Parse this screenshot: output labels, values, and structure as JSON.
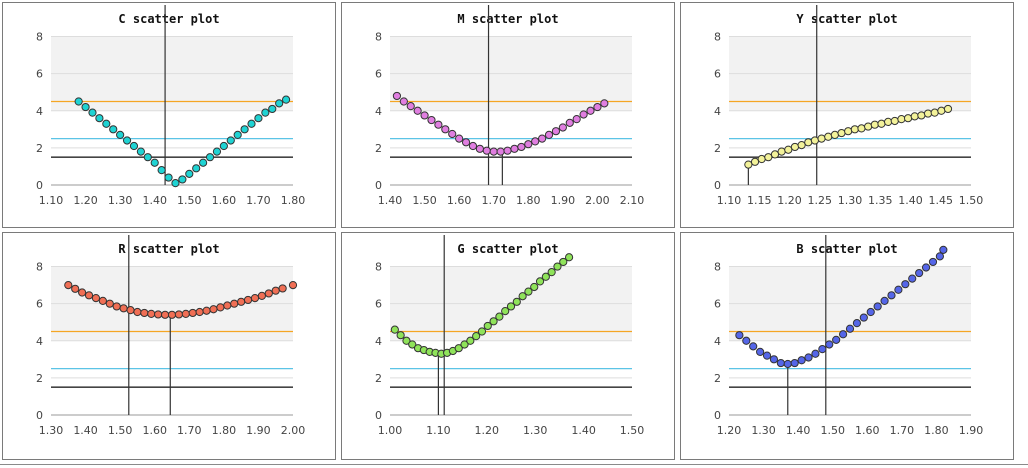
{
  "colors": {
    "band": "#f2f2f2",
    "grid": "#dddddd",
    "axis": "#9a9a9a",
    "orange": "#f5a623",
    "cyan": "#5bc4e6",
    "dark": "#444444",
    "marker": "#333333",
    "point_stroke": "#333333"
  },
  "chart_data": [
    {
      "type": "scatter",
      "title": "C scatter plot",
      "xlim": [
        1.1,
        1.8
      ],
      "xticks": [
        "1.10",
        "1.20",
        "1.30",
        "1.40",
        "1.50",
        "1.60",
        "1.70",
        "1.80"
      ],
      "ylim": [
        0,
        8
      ],
      "yticks": [
        "0",
        "2",
        "4",
        "6",
        "8"
      ],
      "hlines": [
        4.5,
        2.5,
        1.5
      ],
      "vlines": [
        {
          "x": 1.43,
          "y_from": 0,
          "y_to": 9.0
        }
      ],
      "color": "#1fd3d3",
      "x": [
        1.18,
        1.2,
        1.22,
        1.24,
        1.26,
        1.28,
        1.3,
        1.32,
        1.34,
        1.36,
        1.38,
        1.4,
        1.42,
        1.44,
        1.46,
        1.48,
        1.5,
        1.52,
        1.54,
        1.56,
        1.58,
        1.6,
        1.62,
        1.64,
        1.66,
        1.68,
        1.7,
        1.72,
        1.74,
        1.76,
        1.78
      ],
      "y": [
        4.5,
        4.2,
        3.9,
        3.6,
        3.3,
        3.0,
        2.7,
        2.4,
        2.1,
        1.8,
        1.5,
        1.2,
        0.8,
        0.4,
        0.1,
        0.3,
        0.6,
        0.9,
        1.2,
        1.5,
        1.8,
        2.1,
        2.4,
        2.7,
        3.0,
        3.3,
        3.6,
        3.9,
        4.1,
        4.4,
        4.6
      ]
    },
    {
      "type": "scatter",
      "title": "M scatter plot",
      "xlim": [
        1.4,
        2.1
      ],
      "xticks": [
        "1.40",
        "1.50",
        "1.60",
        "1.70",
        "1.80",
        "1.90",
        "2.00",
        "2.10"
      ],
      "ylim": [
        0,
        8
      ],
      "yticks": [
        "0",
        "2",
        "4",
        "6",
        "8"
      ],
      "hlines": [
        4.5,
        2.5,
        1.5
      ],
      "vlines": [
        {
          "x": 1.685,
          "y_from": 0,
          "y_to": 9.0
        },
        {
          "x": 1.725,
          "y_from": 0,
          "y_to": 1.8
        }
      ],
      "color": "#e07ee0",
      "x": [
        1.42,
        1.44,
        1.46,
        1.48,
        1.5,
        1.52,
        1.54,
        1.56,
        1.58,
        1.6,
        1.62,
        1.64,
        1.66,
        1.68,
        1.7,
        1.72,
        1.74,
        1.76,
        1.78,
        1.8,
        1.82,
        1.84,
        1.86,
        1.88,
        1.9,
        1.92,
        1.94,
        1.96,
        1.98,
        2.0,
        2.02
      ],
      "y": [
        4.8,
        4.5,
        4.25,
        4.0,
        3.75,
        3.5,
        3.25,
        3.0,
        2.75,
        2.5,
        2.3,
        2.1,
        1.95,
        1.85,
        1.8,
        1.8,
        1.85,
        1.95,
        2.05,
        2.2,
        2.35,
        2.5,
        2.7,
        2.9,
        3.1,
        3.35,
        3.55,
        3.8,
        4.0,
        4.2,
        4.4
      ]
    },
    {
      "type": "scatter",
      "title": "Y scatter plot",
      "xlim": [
        1.1,
        1.5
      ],
      "xticks": [
        "1.10",
        "1.15",
        "1.20",
        "1.25",
        "1.30",
        "1.35",
        "1.40",
        "1.45",
        "1.50"
      ],
      "ylim": [
        0,
        8
      ],
      "yticks": [
        "0",
        "2",
        "4",
        "6",
        "8"
      ],
      "hlines": [
        4.5,
        2.5,
        1.5
      ],
      "vlines": [
        {
          "x": 1.245,
          "y_from": 0,
          "y_to": 9.0
        },
        {
          "x": 1.132,
          "y_from": 0,
          "y_to": 1.1
        }
      ],
      "color": "#f3f29a",
      "x": [
        1.132,
        1.143,
        1.154,
        1.165,
        1.176,
        1.187,
        1.198,
        1.209,
        1.22,
        1.231,
        1.242,
        1.253,
        1.264,
        1.275,
        1.286,
        1.297,
        1.308,
        1.319,
        1.33,
        1.341,
        1.352,
        1.363,
        1.374,
        1.385,
        1.396,
        1.407,
        1.418,
        1.429,
        1.44,
        1.451,
        1.462
      ],
      "y": [
        1.1,
        1.25,
        1.4,
        1.5,
        1.65,
        1.8,
        1.9,
        2.05,
        2.15,
        2.3,
        2.4,
        2.5,
        2.6,
        2.7,
        2.8,
        2.9,
        3.0,
        3.05,
        3.15,
        3.25,
        3.3,
        3.4,
        3.45,
        3.55,
        3.6,
        3.7,
        3.75,
        3.85,
        3.9,
        4.0,
        4.1
      ]
    },
    {
      "type": "scatter",
      "title": "R scatter plot",
      "xlim": [
        1.3,
        2.0
      ],
      "xticks": [
        "1.30",
        "1.40",
        "1.50",
        "1.60",
        "1.70",
        "1.80",
        "1.90",
        "2.00"
      ],
      "ylim": [
        0,
        8
      ],
      "yticks": [
        "0",
        "2",
        "4",
        "6",
        "8"
      ],
      "hlines": [
        4.5,
        2.5,
        1.5
      ],
      "vlines": [
        {
          "x": 1.525,
          "y_from": 0,
          "y_to": 9.0
        },
        {
          "x": 1.645,
          "y_from": 0,
          "y_to": 5.35
        }
      ],
      "color": "#f06f55",
      "x": [
        1.35,
        1.37,
        1.39,
        1.41,
        1.43,
        1.45,
        1.47,
        1.49,
        1.51,
        1.53,
        1.55,
        1.57,
        1.59,
        1.61,
        1.63,
        1.65,
        1.67,
        1.69,
        1.71,
        1.73,
        1.75,
        1.77,
        1.79,
        1.81,
        1.83,
        1.85,
        1.87,
        1.89,
        1.91,
        1.93,
        1.95,
        1.97,
        2.0
      ],
      "y": [
        7.0,
        6.8,
        6.6,
        6.45,
        6.3,
        6.15,
        6.0,
        5.85,
        5.75,
        5.65,
        5.55,
        5.5,
        5.45,
        5.42,
        5.4,
        5.4,
        5.42,
        5.45,
        5.5,
        5.55,
        5.62,
        5.7,
        5.8,
        5.9,
        6.0,
        6.1,
        6.2,
        6.3,
        6.42,
        6.55,
        6.7,
        6.82,
        7.0
      ]
    },
    {
      "type": "scatter",
      "title": "G scatter plot",
      "xlim": [
        1.0,
        1.5
      ],
      "xticks": [
        "1.00",
        "1.10",
        "1.20",
        "1.30",
        "1.40",
        "1.50"
      ],
      "ylim": [
        0,
        8
      ],
      "yticks": [
        "0",
        "2",
        "4",
        "6",
        "8"
      ],
      "hlines": [
        4.5,
        2.5,
        1.5
      ],
      "vlines": [
        {
          "x": 1.112,
          "y_from": 0,
          "y_to": 9.0
        },
        {
          "x": 1.1,
          "y_from": 0,
          "y_to": 3.3
        }
      ],
      "color": "#8fe35a",
      "x": [
        1.01,
        1.022,
        1.034,
        1.046,
        1.058,
        1.07,
        1.082,
        1.094,
        1.106,
        1.118,
        1.13,
        1.142,
        1.154,
        1.166,
        1.178,
        1.19,
        1.202,
        1.214,
        1.226,
        1.238,
        1.25,
        1.262,
        1.274,
        1.286,
        1.298,
        1.31,
        1.322,
        1.334,
        1.346,
        1.358,
        1.37
      ],
      "y": [
        4.6,
        4.3,
        4.0,
        3.8,
        3.6,
        3.5,
        3.4,
        3.35,
        3.3,
        3.35,
        3.45,
        3.6,
        3.8,
        4.0,
        4.25,
        4.5,
        4.8,
        5.05,
        5.3,
        5.6,
        5.85,
        6.1,
        6.4,
        6.65,
        6.9,
        7.2,
        7.45,
        7.7,
        8.0,
        8.25,
        8.5
      ]
    },
    {
      "type": "scatter",
      "title": "B scatter plot",
      "xlim": [
        1.2,
        1.9
      ],
      "xticks": [
        "1.20",
        "1.30",
        "1.40",
        "1.50",
        "1.60",
        "1.70",
        "1.80",
        "1.90"
      ],
      "ylim": [
        0,
        8
      ],
      "yticks": [
        "0",
        "2",
        "4",
        "6",
        "8"
      ],
      "hlines": [
        4.5,
        2.5,
        1.5
      ],
      "vlines": [
        {
          "x": 1.48,
          "y_from": 0,
          "y_to": 9.0
        },
        {
          "x": 1.37,
          "y_from": 0,
          "y_to": 2.7
        }
      ],
      "color": "#5566e8",
      "x": [
        1.23,
        1.25,
        1.27,
        1.29,
        1.31,
        1.33,
        1.35,
        1.37,
        1.39,
        1.41,
        1.43,
        1.45,
        1.47,
        1.49,
        1.51,
        1.53,
        1.55,
        1.57,
        1.59,
        1.61,
        1.63,
        1.65,
        1.67,
        1.69,
        1.71,
        1.73,
        1.75,
        1.77,
        1.79,
        1.81,
        1.82
      ],
      "y": [
        4.3,
        4.0,
        3.7,
        3.4,
        3.2,
        3.0,
        2.8,
        2.75,
        2.8,
        2.95,
        3.1,
        3.3,
        3.55,
        3.8,
        4.05,
        4.35,
        4.65,
        4.95,
        5.25,
        5.55,
        5.85,
        6.15,
        6.45,
        6.75,
        7.05,
        7.35,
        7.65,
        7.95,
        8.25,
        8.55,
        8.9
      ]
    }
  ]
}
